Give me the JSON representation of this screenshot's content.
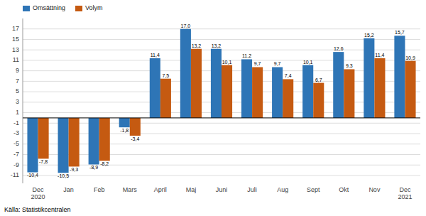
{
  "chart_data": {
    "type": "bar",
    "categories": [
      "Dec\n2020",
      "Jan",
      "Feb",
      "Mars",
      "April",
      "Maj",
      "Juni",
      "Juli",
      "Aug",
      "Sept",
      "Okt",
      "Nov",
      "Dec\n2021"
    ],
    "series": [
      {
        "name": "Omsättning",
        "color": "#2E75B6",
        "values": [
          -10.4,
          -10.5,
          -8.9,
          -1.8,
          11.4,
          17.0,
          13.2,
          11.2,
          9.7,
          10.1,
          12.6,
          15.2,
          15.7
        ],
        "value_labels": [
          "-10,4",
          "-10,5",
          "-8,9",
          "-1,8",
          "11,4",
          "17,0",
          "13,2",
          "11,2",
          "9,7",
          "10,1",
          "12,6",
          "15,2",
          "15,7"
        ]
      },
      {
        "name": "Volym",
        "color": "#C55A11",
        "values": [
          -7.8,
          -9.3,
          -8.2,
          -3.4,
          7.5,
          13.2,
          10.1,
          9.7,
          7.4,
          6.7,
          9.3,
          11.4,
          10.9
        ],
        "value_labels": [
          "-7,8",
          "-9,3",
          "-8,2",
          "-3,4",
          "7,5",
          "13,2",
          "10,1",
          "9,7",
          "7,4",
          "6,7",
          "9,3",
          "11,4",
          "10,9"
        ]
      }
    ],
    "ylim": [
      -12.5,
      19.0
    ],
    "yticks": [
      -11,
      -9,
      -7,
      -5,
      -3,
      -1,
      1,
      3,
      5,
      7,
      9,
      11,
      13,
      15,
      17
    ],
    "grid": true,
    "legend": "upper left",
    "data_labels": true,
    "annotations": [
      "Källa: Statistikcentralen"
    ]
  }
}
